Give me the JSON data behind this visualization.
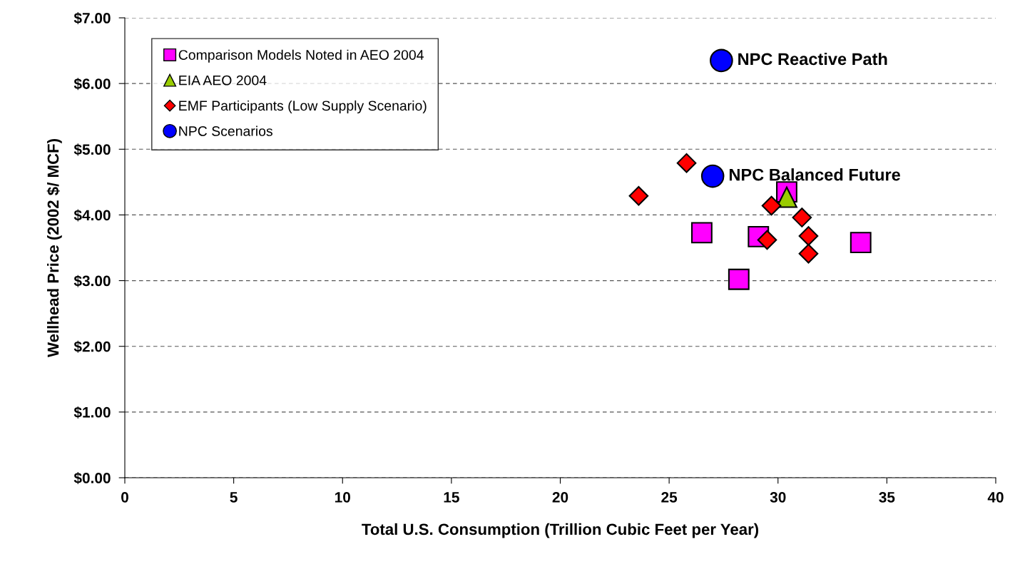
{
  "chart_data": {
    "type": "scatter",
    "xlabel": "Total U.S. Consumption (Trillion Cubic Feet per Year)",
    "ylabel": "Wellhead Price (2002 $/ MCF)",
    "xlim": [
      0,
      40
    ],
    "xticks": [
      0,
      5,
      10,
      15,
      20,
      25,
      30,
      35,
      40
    ],
    "ylim": [
      0,
      7
    ],
    "yticks": [
      {
        "value": 0,
        "label": "$0.00"
      },
      {
        "value": 1,
        "label": "$1.00"
      },
      {
        "value": 2,
        "label": "$2.00"
      },
      {
        "value": 3,
        "label": "$3.00"
      },
      {
        "value": 4,
        "label": "$4.00"
      },
      {
        "value": 5,
        "label": "$5.00"
      },
      {
        "value": 6,
        "label": "$6.00"
      },
      {
        "value": 7,
        "label": "$7.00"
      }
    ],
    "grid": "y",
    "legend": "top left",
    "series": [
      {
        "name": "Comparison Models Noted in AEO 2004",
        "color": "#ff00ff",
        "marker": "square",
        "x": [
          26.5,
          29.1,
          28.2,
          30.4,
          33.8
        ],
        "values": [
          3.73,
          3.67,
          3.02,
          4.35,
          3.58
        ]
      },
      {
        "name": "EIA AEO 2004",
        "color": "#99cc00",
        "marker": "triangle",
        "x": [
          30.4
        ],
        "values": [
          4.27
        ]
      },
      {
        "name": "EMF Participants (Low Supply Scenario)",
        "color": "#ff0000",
        "marker": "diamond",
        "x": [
          23.6,
          25.8,
          29.7,
          31.1,
          29.5,
          31.4,
          31.4
        ],
        "values": [
          4.29,
          4.79,
          4.14,
          3.96,
          3.62,
          3.68,
          3.41
        ]
      },
      {
        "name": "NPC Scenarios",
        "color": "#0000ff",
        "marker": "circle",
        "x": [
          27.4,
          27.0
        ],
        "values": [
          6.35,
          4.59
        ]
      }
    ],
    "annotations": [
      {
        "text": "NPC Reactive Path",
        "x": 27.4,
        "y": 6.35
      },
      {
        "text": "NPC Balanced Future",
        "x": 27.0,
        "y": 4.59
      }
    ]
  }
}
